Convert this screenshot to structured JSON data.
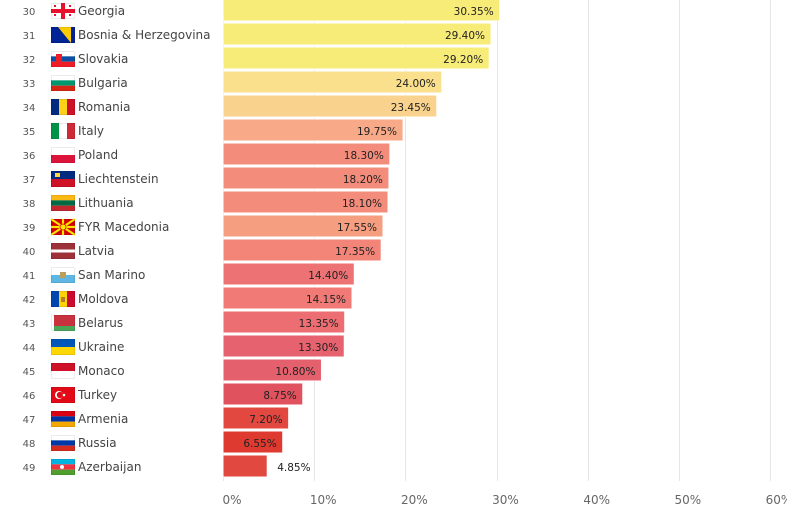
{
  "chart_data": {
    "type": "bar",
    "orientation": "horizontal",
    "title": "",
    "xlabel": "",
    "ylabel": "",
    "xlim": [
      0,
      60
    ],
    "grid": true,
    "value_format": "percent",
    "x_ticks": [
      "0%",
      "10%",
      "20%",
      "30%",
      "40%",
      "50%",
      "60%"
    ],
    "x_tick_values": [
      0,
      10,
      20,
      30,
      40,
      50,
      60
    ],
    "rows": [
      {
        "rank": 30,
        "country": "Georgia",
        "flag": "georgia-flag",
        "value": 30.35,
        "label": "30.35%",
        "color": "#f8ec78"
      },
      {
        "rank": 31,
        "country": "Bosnia & Herzegovina",
        "flag": "bosnia-flag",
        "value": 29.4,
        "label": "29.40%",
        "color": "#f8ec78"
      },
      {
        "rank": 32,
        "country": "Slovakia",
        "flag": "slovakia-flag",
        "value": 29.2,
        "label": "29.20%",
        "color": "#f8ec78"
      },
      {
        "rank": 33,
        "country": "Bulgaria",
        "flag": "bulgaria-flag",
        "value": 24.0,
        "label": "24.00%",
        "color": "#fadf8c"
      },
      {
        "rank": 34,
        "country": "Romania",
        "flag": "romania-flag",
        "value": 23.45,
        "label": "23.45%",
        "color": "#f9d38e"
      },
      {
        "rank": 35,
        "country": "Italy",
        "flag": "italy-flag",
        "value": 19.75,
        "label": "19.75%",
        "color": "#f8aa88"
      },
      {
        "rank": 36,
        "country": "Poland",
        "flag": "poland-flag",
        "value": 18.3,
        "label": "18.30%",
        "color": "#f48c7c"
      },
      {
        "rank": 37,
        "country": "Liechtenstein",
        "flag": "liechtenstein-flag",
        "value": 18.2,
        "label": "18.20%",
        "color": "#f48c7c"
      },
      {
        "rank": 38,
        "country": "Lithuania",
        "flag": "lithuania-flag",
        "value": 18.1,
        "label": "18.10%",
        "color": "#f48c7c"
      },
      {
        "rank": 39,
        "country": "FYR Macedonia",
        "flag": "macedonia-flag",
        "value": 17.55,
        "label": "17.55%",
        "color": "#f59e80"
      },
      {
        "rank": 40,
        "country": "Latvia",
        "flag": "latvia-flag",
        "value": 17.35,
        "label": "17.35%",
        "color": "#f28478"
      },
      {
        "rank": 41,
        "country": "San Marino",
        "flag": "san-marino-flag",
        "value": 14.4,
        "label": "14.40%",
        "color": "#ec7274"
      },
      {
        "rank": 42,
        "country": "Moldova",
        "flag": "moldova-flag",
        "value": 14.15,
        "label": "14.15%",
        "color": "#f17a76"
      },
      {
        "rank": 43,
        "country": "Belarus",
        "flag": "belarus-flag",
        "value": 13.35,
        "label": "13.35%",
        "color": "#ec6e72"
      },
      {
        "rank": 44,
        "country": "Ukraine",
        "flag": "ukraine-flag",
        "value": 13.3,
        "label": "13.30%",
        "color": "#e6626e"
      },
      {
        "rank": 45,
        "country": "Monaco",
        "flag": "monaco-flag",
        "value": 10.8,
        "label": "10.80%",
        "color": "#e3606c"
      },
      {
        "rank": 46,
        "country": "Turkey",
        "flag": "turkey-flag",
        "value": 8.75,
        "label": "8.75%",
        "color": "#e0525e"
      },
      {
        "rank": 47,
        "country": "Armenia",
        "flag": "armenia-flag",
        "value": 7.2,
        "label": "7.20%",
        "color": "#e34840"
      },
      {
        "rank": 48,
        "country": "Russia",
        "flag": "russia-flag",
        "value": 6.55,
        "label": "6.55%",
        "color": "#de3a30"
      },
      {
        "rank": 49,
        "country": "Azerbaijan",
        "flag": "azerbaijan-flag",
        "value": 4.85,
        "label": "4.85%",
        "color": "#e04840"
      }
    ]
  }
}
